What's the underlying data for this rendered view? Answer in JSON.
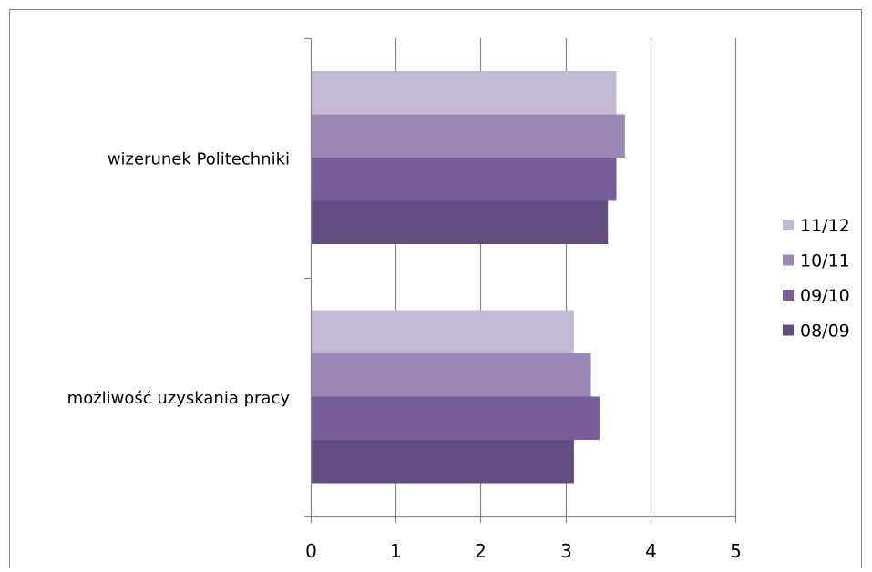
{
  "chart_data": {
    "type": "bar",
    "orientation": "horizontal",
    "categories": [
      "wizerunek Politechniki",
      "możliwość uzyskania pracy"
    ],
    "series": [
      {
        "name": "11/12",
        "values": [
          3.6,
          3.1
        ]
      },
      {
        "name": "10/11",
        "values": [
          3.7,
          3.3
        ]
      },
      {
        "name": "09/10",
        "values": [
          3.6,
          3.4
        ]
      },
      {
        "name": "08/09",
        "values": [
          3.5,
          3.1
        ]
      }
    ],
    "xlim": [
      0,
      5
    ],
    "x_ticks": [
      "0",
      "1",
      "2",
      "3",
      "4",
      "5"
    ],
    "grid": true,
    "legend_position": "right",
    "colors": {
      "11/12": "#c3b9d3",
      "10/11": "#9c88b5",
      "09/10": "#765c98",
      "08/09": "#634d80",
      "grid": "#868686",
      "frame": "#868686"
    }
  }
}
